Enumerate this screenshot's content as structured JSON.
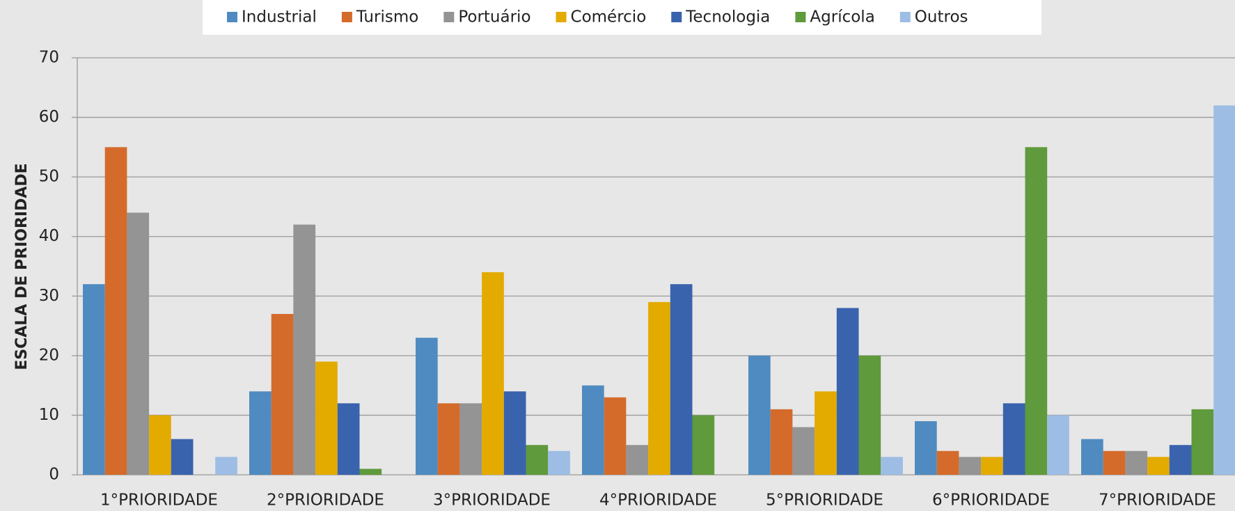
{
  "chart_data": {
    "type": "bar",
    "y_label": "ESCALA DE PRIORIDADE",
    "categories": [
      "1°PRIORIDADE",
      "2°PRIORIDADE",
      "3°PRIORIDADE",
      "4°PRIORIDADE",
      "5°PRIORIDADE",
      "6°PRIORIDADE",
      "7°PRIORIDADE"
    ],
    "series": [
      {
        "name": "Industrial",
        "color": "#4f8bc0",
        "values": [
          32,
          14,
          23,
          15,
          20,
          9,
          6
        ]
      },
      {
        "name": "Turismo",
        "color": "#d46b2b",
        "values": [
          55,
          27,
          12,
          13,
          11,
          4,
          4
        ]
      },
      {
        "name": "Portuário",
        "color": "#949494",
        "values": [
          44,
          42,
          12,
          5,
          8,
          3,
          4
        ]
      },
      {
        "name": "Comércio",
        "color": "#e3aa00",
        "values": [
          10,
          19,
          34,
          29,
          14,
          3,
          3
        ]
      },
      {
        "name": "Tecnologia",
        "color": "#3a63ad",
        "values": [
          6,
          12,
          14,
          32,
          28,
          12,
          5
        ]
      },
      {
        "name": "Agrícola",
        "color": "#5f9a3c",
        "values": [
          0,
          1,
          5,
          10,
          20,
          55,
          11
        ]
      },
      {
        "name": "Outros",
        "color": "#9dbde4",
        "values": [
          3,
          0,
          4,
          0,
          3,
          10,
          62
        ]
      }
    ],
    "ylim": [
      0,
      70
    ],
    "yticks": [
      0,
      10,
      20,
      30,
      40,
      50,
      60,
      70
    ],
    "grid": true,
    "legend": "top"
  }
}
